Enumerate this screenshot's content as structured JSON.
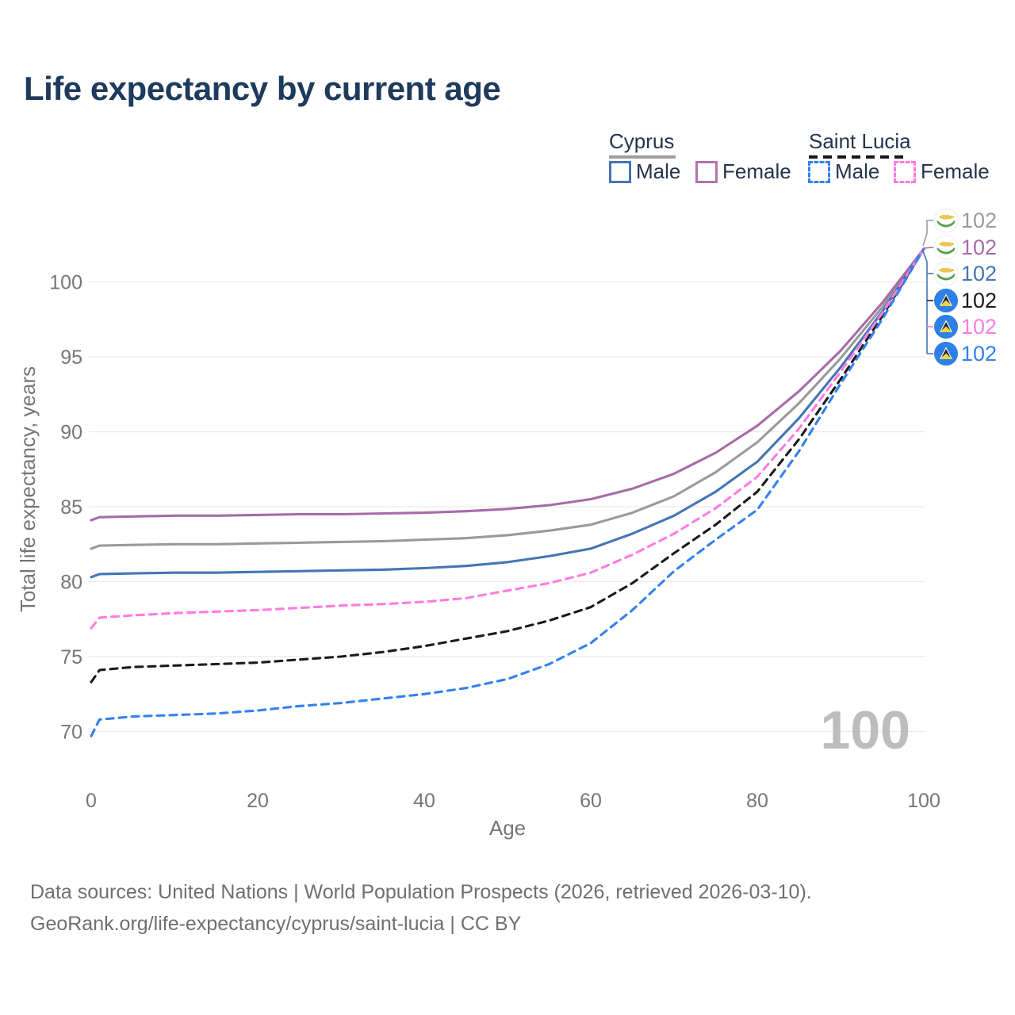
{
  "title": "Life expectancy by current age",
  "legend": {
    "groups": [
      {
        "name": "Cyprus",
        "line_style": "solid",
        "underline_color": "#9e9e9e",
        "items": [
          {
            "label": "Male",
            "color": "#4575b4",
            "dashed": false
          },
          {
            "label": "Female",
            "color": "#b173b1",
            "dashed": false
          }
        ]
      },
      {
        "name": "Saint Lucia",
        "line_style": "dashed",
        "underline_color": "#161616",
        "items": [
          {
            "label": "Male",
            "color": "#3381f0",
            "dashed": true
          },
          {
            "label": "Female",
            "color": "#ff7ce0",
            "dashed": true
          }
        ]
      }
    ]
  },
  "watermark": "100",
  "chart_data": {
    "type": "line",
    "title": "Life expectancy by current age",
    "xlabel": "Age",
    "ylabel": "Total life expectancy, years",
    "xlim": [
      0,
      100
    ],
    "ylim": [
      68.5,
      103.5
    ],
    "x_ticks": [
      0,
      20,
      40,
      60,
      80,
      100
    ],
    "y_ticks": [
      70,
      75,
      80,
      85,
      90,
      95,
      100
    ],
    "grid": "horizontal",
    "legend_position": "top-right",
    "ages": [
      0,
      1,
      5,
      10,
      15,
      20,
      25,
      30,
      35,
      40,
      45,
      50,
      55,
      60,
      65,
      70,
      75,
      80,
      85,
      90,
      95,
      100
    ],
    "series": [
      {
        "name": "Cyprus",
        "country": "Cyprus",
        "flag": "cyprus",
        "color": "#9a9a9a",
        "dashed": false,
        "label_row": 0,
        "end_label": "102",
        "values": [
          82.2,
          82.4,
          82.45,
          82.5,
          82.5,
          82.55,
          82.6,
          82.65,
          82.7,
          82.8,
          82.9,
          83.1,
          83.4,
          83.8,
          84.6,
          85.7,
          87.3,
          89.3,
          91.9,
          94.9,
          98.3,
          102.2
        ]
      },
      {
        "name": "Cyprus Female",
        "country": "Cyprus",
        "flag": "cyprus",
        "color": "#a76ba7",
        "dashed": false,
        "label_row": 1,
        "end_label": "102",
        "values": [
          84.1,
          84.3,
          84.35,
          84.4,
          84.4,
          84.45,
          84.5,
          84.5,
          84.55,
          84.6,
          84.7,
          84.85,
          85.1,
          85.5,
          86.2,
          87.2,
          88.6,
          90.4,
          92.7,
          95.4,
          98.6,
          102.2
        ]
      },
      {
        "name": "Cyprus Male",
        "country": "Cyprus",
        "flag": "cyprus",
        "color": "#4575b4",
        "dashed": false,
        "label_row": 2,
        "end_label": "102",
        "values": [
          80.3,
          80.5,
          80.55,
          80.6,
          80.6,
          80.65,
          80.7,
          80.75,
          80.8,
          80.9,
          81.05,
          81.3,
          81.7,
          82.2,
          83.2,
          84.4,
          86.0,
          88.0,
          90.9,
          94.3,
          98.0,
          102.2
        ]
      },
      {
        "name": "Saint Lucia",
        "country": "Saint Lucia",
        "flag": "saint-lucia",
        "color": "#1b1b1b",
        "dashed": true,
        "label_row": 3,
        "end_label": "102",
        "values": [
          73.3,
          74.1,
          74.3,
          74.4,
          74.5,
          74.6,
          74.8,
          75.0,
          75.3,
          75.7,
          76.2,
          76.7,
          77.4,
          78.3,
          79.9,
          81.9,
          83.8,
          86.0,
          89.5,
          93.5,
          97.7,
          102.2
        ]
      },
      {
        "name": "Saint Lucia Female",
        "country": "Saint Lucia",
        "flag": "saint-lucia",
        "color": "#ff7ce0",
        "dashed": true,
        "label_row": 4,
        "end_label": "102",
        "values": [
          76.9,
          77.6,
          77.75,
          77.9,
          78.0,
          78.1,
          78.25,
          78.4,
          78.5,
          78.65,
          78.9,
          79.4,
          79.9,
          80.6,
          81.8,
          83.2,
          84.9,
          87.0,
          90.2,
          94.0,
          97.9,
          102.2
        ]
      },
      {
        "name": "Saint Lucia Male",
        "country": "Saint Lucia",
        "flag": "saint-lucia",
        "color": "#3381f0",
        "dashed": true,
        "label_row": 5,
        "end_label": "102",
        "values": [
          69.7,
          70.8,
          71.0,
          71.1,
          71.2,
          71.4,
          71.7,
          71.9,
          72.2,
          72.5,
          72.9,
          73.5,
          74.5,
          75.9,
          78.1,
          80.7,
          82.8,
          84.8,
          88.7,
          93.2,
          97.5,
          102.2
        ]
      }
    ]
  },
  "footer": {
    "line1": "Data sources: United Nations | World Population Prospects (2026, retrieved 2026-03-10).",
    "line2": "GeoRank.org/life-expectancy/cyprus/saint-lucia | CC BY"
  }
}
